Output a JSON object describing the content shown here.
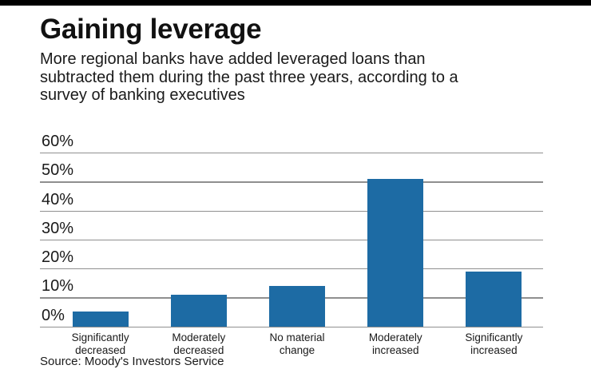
{
  "page": {
    "background": "#ffffff",
    "top_bar_color": "#000000"
  },
  "header": {
    "title": "Gaining leverage",
    "subtitle_line1": "More regional banks have added leveraged loans than",
    "subtitle_line2": "subtracted them during the past three years, according to a",
    "subtitle_line3": "survey of banking executives"
  },
  "chart_data": {
    "type": "bar",
    "title": "Gaining leverage",
    "subtitle": "More regional banks have added leveraged loans than subtracted them during the past three years, according to a survey of banking executives",
    "categories": [
      "Significantly decreased",
      "Moderately decreased",
      "No material change",
      "Moderately increased",
      "Significantly increased"
    ],
    "category_lines": [
      [
        "Significantly",
        "decreased"
      ],
      [
        "Moderately",
        "decreased"
      ],
      [
        "No material",
        "change"
      ],
      [
        "Moderately",
        "increased"
      ],
      [
        "Significantly",
        "increased"
      ]
    ],
    "values": [
      5,
      11,
      14,
      51,
      19
    ],
    "unit": "%",
    "xlabel": "",
    "ylabel": "",
    "ylim": [
      0,
      60
    ],
    "ytick_step": 10,
    "yticks": [
      "60%",
      "50%",
      "40%",
      "30%",
      "20%",
      "10%",
      "0%"
    ],
    "grid": true,
    "legend": "none",
    "bar_color": "#1d6ba4",
    "gridline_color": "#8f8f8f",
    "text_color": "#1a1a1a"
  },
  "footer": {
    "source": "Source: Moody's Investors Service"
  }
}
